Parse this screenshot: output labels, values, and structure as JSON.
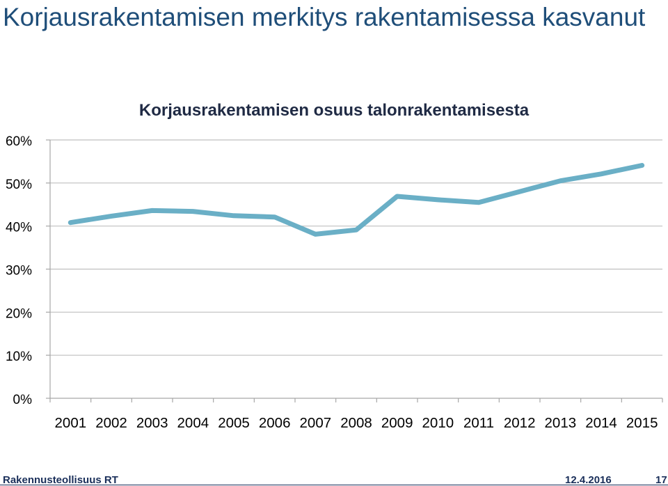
{
  "slide": {
    "title": "Korjausrakentamisen merkitys rakentamisessa kasvanut"
  },
  "footer": {
    "organization": "Rakennusteollisuus RT",
    "date": "12.4.2016",
    "page": "17"
  },
  "colors": {
    "title": "#1f4e79",
    "line": "#6aafc6",
    "grid": "#bfbfbf",
    "axis_text": "#000000"
  },
  "chart_data": {
    "type": "line",
    "title": "Korjausrakentamisen osuus talonrakentamisesta",
    "x": [
      "2001",
      "2002",
      "2003",
      "2004",
      "2005",
      "2006",
      "2007",
      "2008",
      "2009",
      "2010",
      "2011",
      "2012",
      "2013",
      "2014",
      "2015"
    ],
    "series": [
      {
        "values": [
          40.8,
          42.3,
          43.6,
          43.4,
          42.4,
          42.1,
          38.1,
          39.1,
          46.9,
          46.1,
          45.5,
          48.0,
          50.5,
          52.1,
          54.1
        ]
      }
    ],
    "ylim": [
      0,
      60
    ],
    "yticks": [
      "0%",
      "10%",
      "20%",
      "30%",
      "40%",
      "50%",
      "60%"
    ],
    "yticks_values": [
      0,
      10,
      20,
      30,
      40,
      50,
      60
    ],
    "grid": true,
    "legend": "none"
  }
}
